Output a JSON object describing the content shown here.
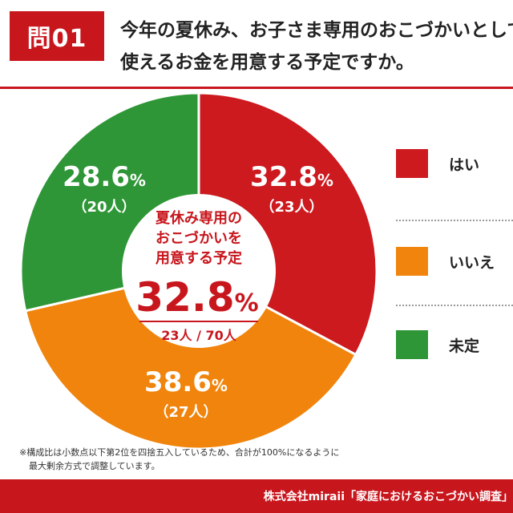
{
  "header": {
    "question_badge": "問01",
    "question_line1": "今年の夏休み、お子さま専用のおこづかいとして",
    "question_line2": "使えるお金を用意する予定ですか。"
  },
  "chart_data": {
    "type": "pie",
    "donut": true,
    "slices": [
      {
        "label": "はい",
        "value": 32.8,
        "count_label": "（23人）",
        "percent_label": "32.8",
        "color": "#cc1a1f"
      },
      {
        "label": "いいえ",
        "value": 38.6,
        "count_label": "（27人）",
        "percent_label": "38.6",
        "color": "#f0840c"
      },
      {
        "label": "未定",
        "value": 28.6,
        "count_label": "（20人）",
        "percent_label": "28.6",
        "color": "#2e9636"
      }
    ],
    "percent_unit": "%",
    "center": {
      "title_line1": "夏休み専用の",
      "title_line2": "おこづかいを",
      "title_line3": "用意する予定",
      "big_value": "32.8",
      "big_unit": "%",
      "fraction": "23人 / 70人"
    }
  },
  "legend": {
    "items": [
      {
        "label": "はい",
        "color": "#cc1a1f"
      },
      {
        "label": "いいえ",
        "color": "#f0840c"
      },
      {
        "label": "未定",
        "color": "#2e9636"
      }
    ]
  },
  "note": {
    "line1": "※構成比は小数点以下第2位を四捨五入しているため、合計が100%になるように",
    "line2": "最大剰余方式で調整しています。"
  },
  "footer": {
    "source": "株式会社miraii「家庭におけるおこづかい調査」"
  },
  "colors": {
    "brand_red": "#c8161d",
    "yes_red": "#cc1a1f",
    "no_orange": "#f0840c",
    "undecided_green": "#2e9636"
  }
}
